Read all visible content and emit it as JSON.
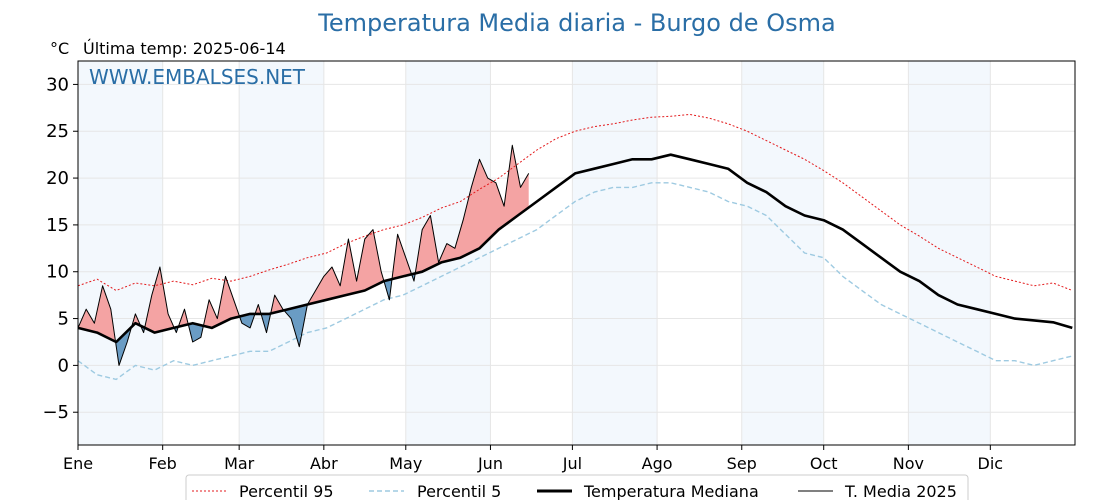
{
  "chart_data": {
    "type": "line",
    "title": "Temperatura Media diaria - Burgo de Osma",
    "unit_label": "°C",
    "last_temp_label": "Última temp: 2025-06-14",
    "watermark": "WWW.EMBALSES.NET",
    "ylim": [
      -8.5,
      32.5
    ],
    "xlim": [
      0,
      365
    ],
    "y_ticks": [
      -5,
      0,
      5,
      10,
      15,
      20,
      25,
      30
    ],
    "y_tick_labels": [
      "−5",
      "0",
      "5",
      "10",
      "15",
      "20",
      "25",
      "30"
    ],
    "x_ticks": [
      {
        "day": 0,
        "label": "Ene"
      },
      {
        "day": 31,
        "label": "Feb"
      },
      {
        "day": 59,
        "label": "Mar"
      },
      {
        "day": 90,
        "label": "Abr"
      },
      {
        "day": 120,
        "label": "May"
      },
      {
        "day": 151,
        "label": "Jun"
      },
      {
        "day": 181,
        "label": "Jul"
      },
      {
        "day": 212,
        "label": "Ago"
      },
      {
        "day": 243,
        "label": "Sep"
      },
      {
        "day": 273,
        "label": "Oct"
      },
      {
        "day": 304,
        "label": "Nov"
      },
      {
        "day": 334,
        "label": "Dic"
      }
    ],
    "shaded_months": [
      [
        0,
        31
      ],
      [
        59,
        90
      ],
      [
        120,
        151
      ],
      [
        181,
        212
      ],
      [
        243,
        273
      ],
      [
        304,
        334
      ]
    ],
    "grid": true,
    "legend_position": "bottom",
    "colors": {
      "p95": "#e31a1c",
      "p5": "#9ecae1",
      "median": "#000000",
      "current": "#000000",
      "above_fill": "#f4a3a3",
      "below_fill": "#6a9cc4",
      "month_shade": "#f3f8fd",
      "title": "#2a6ea6"
    },
    "series": [
      {
        "name": "Percentil 95",
        "style": "dotted-red",
        "x": [
          0,
          7,
          14,
          21,
          28,
          35,
          42,
          49,
          56,
          63,
          70,
          77,
          84,
          91,
          98,
          105,
          112,
          119,
          126,
          133,
          140,
          147,
          154,
          161,
          168,
          175,
          182,
          189,
          196,
          203,
          210,
          217,
          224,
          231,
          238,
          245,
          252,
          259,
          266,
          273,
          280,
          287,
          294,
          301,
          308,
          315,
          322,
          329,
          336,
          343,
          350,
          357,
          364
        ],
        "values": [
          8.5,
          9.2,
          8.0,
          8.8,
          8.5,
          9.0,
          8.6,
          9.3,
          9.0,
          9.5,
          10.2,
          10.8,
          11.5,
          12.0,
          13.0,
          13.8,
          14.5,
          15.0,
          15.8,
          16.8,
          17.5,
          18.8,
          20.0,
          21.5,
          23.0,
          24.2,
          25.0,
          25.5,
          25.8,
          26.2,
          26.5,
          26.6,
          26.8,
          26.4,
          25.8,
          25.0,
          24.0,
          23.0,
          22.0,
          20.8,
          19.5,
          18.0,
          16.5,
          15.0,
          13.8,
          12.5,
          11.5,
          10.5,
          9.5,
          9.0,
          8.5,
          8.8,
          8.0
        ]
      },
      {
        "name": "Percentil 5",
        "style": "dashed-lightblue",
        "x": [
          0,
          7,
          14,
          21,
          28,
          35,
          42,
          49,
          56,
          63,
          70,
          77,
          84,
          91,
          98,
          105,
          112,
          119,
          126,
          133,
          140,
          147,
          154,
          161,
          168,
          175,
          182,
          189,
          196,
          203,
          210,
          217,
          224,
          231,
          238,
          245,
          252,
          259,
          266,
          273,
          280,
          287,
          294,
          301,
          308,
          315,
          322,
          329,
          336,
          343,
          350,
          357,
          364
        ],
        "values": [
          0.5,
          -1.0,
          -1.5,
          0.0,
          -0.5,
          0.5,
          0.0,
          0.5,
          1.0,
          1.5,
          1.5,
          2.5,
          3.5,
          4.0,
          5.0,
          6.0,
          7.0,
          7.5,
          8.5,
          9.5,
          10.5,
          11.5,
          12.5,
          13.5,
          14.5,
          16.0,
          17.5,
          18.5,
          19.0,
          19.0,
          19.5,
          19.5,
          19.0,
          18.5,
          17.5,
          17.0,
          16.0,
          14.0,
          12.0,
          11.5,
          9.5,
          8.0,
          6.5,
          5.5,
          4.5,
          3.5,
          2.5,
          1.5,
          0.5,
          0.5,
          0.0,
          0.5,
          1.0
        ]
      },
      {
        "name": "Temperatura Mediana",
        "style": "solid-black-thick",
        "x": [
          0,
          7,
          14,
          21,
          28,
          35,
          42,
          49,
          56,
          63,
          70,
          77,
          84,
          91,
          98,
          105,
          112,
          119,
          126,
          133,
          140,
          147,
          154,
          161,
          168,
          175,
          182,
          189,
          196,
          203,
          210,
          217,
          224,
          231,
          238,
          245,
          252,
          259,
          266,
          273,
          280,
          287,
          294,
          301,
          308,
          315,
          322,
          329,
          336,
          343,
          350,
          357,
          364
        ],
        "values": [
          4.0,
          3.5,
          2.5,
          4.5,
          3.5,
          4.0,
          4.5,
          4.0,
          5.0,
          5.5,
          5.5,
          6.0,
          6.5,
          7.0,
          7.5,
          8.0,
          9.0,
          9.5,
          10.0,
          11.0,
          11.5,
          12.5,
          14.5,
          16.0,
          17.5,
          19.0,
          20.5,
          21.0,
          21.5,
          22.0,
          22.0,
          22.5,
          22.0,
          21.5,
          21.0,
          19.5,
          18.5,
          17.0,
          16.0,
          15.5,
          14.5,
          13.0,
          11.5,
          10.0,
          9.0,
          7.5,
          6.5,
          6.0,
          5.5,
          5.0,
          4.8,
          4.6,
          4.0
        ]
      },
      {
        "name": "T. Media 2025",
        "style": "solid-black-thin",
        "x": [
          0,
          3,
          6,
          9,
          12,
          15,
          18,
          21,
          24,
          27,
          30,
          33,
          36,
          39,
          42,
          45,
          48,
          51,
          54,
          57,
          60,
          63,
          66,
          69,
          72,
          75,
          78,
          81,
          84,
          87,
          90,
          93,
          96,
          99,
          102,
          105,
          108,
          111,
          114,
          117,
          120,
          123,
          126,
          129,
          132,
          135,
          138,
          141,
          144,
          147,
          150,
          153,
          156,
          159,
          162,
          165
        ],
        "values": [
          4.0,
          6.0,
          4.5,
          8.5,
          6.0,
          0.0,
          2.5,
          5.5,
          3.5,
          7.5,
          10.5,
          5.5,
          3.5,
          6.0,
          2.5,
          3.0,
          7.0,
          5.0,
          9.5,
          7.0,
          4.5,
          4.0,
          6.5,
          3.5,
          7.5,
          6.0,
          5.0,
          2.0,
          6.5,
          8.0,
          9.5,
          10.5,
          8.5,
          13.5,
          9.0,
          13.5,
          14.5,
          10.0,
          7.0,
          14.0,
          11.5,
          9.0,
          14.5,
          16.0,
          11.0,
          13.0,
          12.5,
          15.5,
          19.0,
          22.0,
          20.0,
          19.5,
          17.0,
          23.5,
          19.0,
          20.5
        ]
      }
    ]
  },
  "legend": {
    "items": [
      {
        "label": "Percentil 95"
      },
      {
        "label": "Percentil 5"
      },
      {
        "label": "Temperatura Mediana"
      },
      {
        "label": "T. Media 2025"
      }
    ]
  }
}
